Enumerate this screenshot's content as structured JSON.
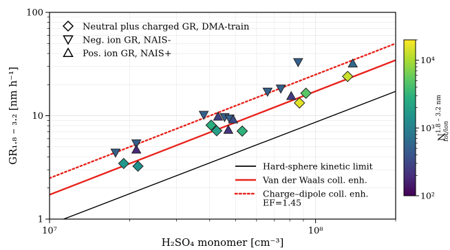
{
  "chart_data": {
    "type": "scatter",
    "xlabel": "H₂SO₄ monomer [cm⁻³]",
    "ylabel": "GR₁.₈ – ₃.₂ [nm h⁻¹]",
    "xscale": "log",
    "yscale": "log",
    "xlim": [
      10000000.0,
      200000000.0
    ],
    "ylim": [
      1,
      100
    ],
    "grid": true,
    "x_ticks": [
      {
        "value": 10000000.0,
        "label": "10⁷"
      },
      {
        "value": 100000000.0,
        "label": "10⁸"
      }
    ],
    "y_ticks": [
      {
        "value": 1,
        "label": "1"
      },
      {
        "value": 10,
        "label": "10"
      },
      {
        "value": 100,
        "label": "100"
      }
    ],
    "legend_markers_placement": "top-left",
    "legend_lines_placement": "bottom-right",
    "series": [
      {
        "name": "Neutral plus charged GR, DMA-train",
        "marker": "diamond",
        "points": [
          {
            "x": 19000000.0,
            "y": 3.45,
            "n": 1600
          },
          {
            "x": 21500000.0,
            "y": 3.25,
            "n": 1400
          },
          {
            "x": 40500000.0,
            "y": 8.1,
            "n": 2800
          },
          {
            "x": 42500000.0,
            "y": 7.15,
            "n": 2000
          },
          {
            "x": 53000000.0,
            "y": 7.1,
            "n": 3000
          },
          {
            "x": 87000000.0,
            "y": 13.3,
            "n": 16000
          },
          {
            "x": 92000000.0,
            "y": 16.5,
            "n": 5000
          },
          {
            "x": 132000000.0,
            "y": 24,
            "n": 13000
          }
        ]
      },
      {
        "name": "Neg. ion GR, NAIS-",
        "marker": "triangle-down",
        "points": [
          {
            "x": 17700000.0,
            "y": 4.4,
            "n": 500
          },
          {
            "x": 21200000.0,
            "y": 5.4,
            "n": 500
          },
          {
            "x": 38000000.0,
            "y": 10.2,
            "n": 500
          },
          {
            "x": 45500000.0,
            "y": 9.7,
            "n": 500
          },
          {
            "x": 47500000.0,
            "y": 9.4,
            "n": 500
          },
          {
            "x": 66000000.0,
            "y": 17.1,
            "n": 500
          },
          {
            "x": 74000000.0,
            "y": 18.3,
            "n": 500
          },
          {
            "x": 86000000.0,
            "y": 33,
            "n": 500
          }
        ]
      },
      {
        "name": "Pos. ion GR, NAIS+",
        "marker": "triangle-up",
        "points": [
          {
            "x": 21200000.0,
            "y": 4.7,
            "n": 180
          },
          {
            "x": 43000000.0,
            "y": 9.8,
            "n": 280
          },
          {
            "x": 47000000.0,
            "y": 7.3,
            "n": 220
          },
          {
            "x": 49000000.0,
            "y": 9.2,
            "n": 330
          },
          {
            "x": 81000000.0,
            "y": 15.5,
            "n": 260
          },
          {
            "x": 138000000.0,
            "y": 32,
            "n": 600
          }
        ]
      }
    ],
    "lines": [
      {
        "name": "Hard-sphere kinetic limit",
        "color": "#000000",
        "style": "solid",
        "points": [
          [
            11300000.0,
            1.0
          ],
          [
            200000000.0,
            17.2
          ]
        ]
      },
      {
        "name": "Van der Waals coll. enh.",
        "color": "#e8221b",
        "style": "solid",
        "points": [
          [
            10000000.0,
            1.72
          ],
          [
            200000000.0,
            34.5
          ]
        ]
      },
      {
        "name": "Charge–dipole coll. enh.\nEF=1.45",
        "name_lines": [
          "Charge–dipole coll. enh.",
          "EF=1.45"
        ],
        "color": "#e8221b",
        "style": "dotted",
        "points": [
          [
            10000000.0,
            2.49
          ],
          [
            200000000.0,
            50
          ]
        ]
      }
    ],
    "colorbar": {
      "label_main": "N",
      "label_sup": "1.8 – 3.2 nm",
      "label_sub": "tot/ion",
      "scale": "log",
      "range": [
        100,
        20000
      ],
      "colormap": "viridis",
      "ticks": [
        {
          "value": 100,
          "label": "10²"
        },
        {
          "value": 1000,
          "label": "10³"
        },
        {
          "value": 10000,
          "label": "10⁴"
        }
      ]
    }
  }
}
